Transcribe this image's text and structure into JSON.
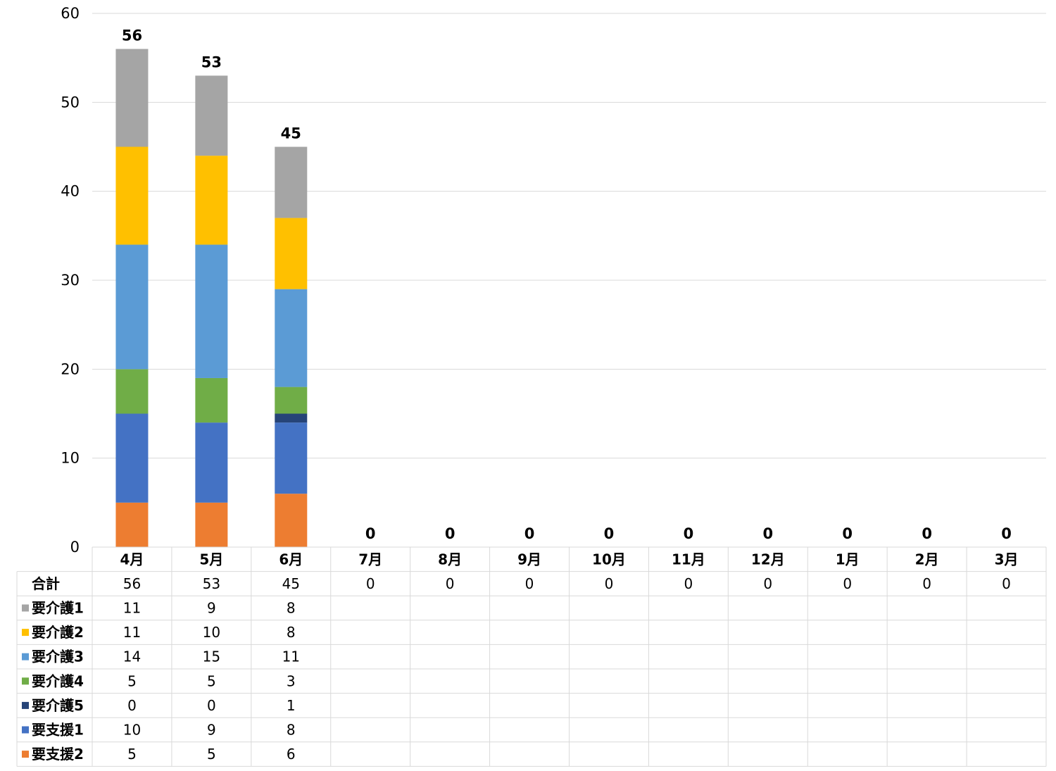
{
  "chart_data": {
    "type": "bar",
    "stacked": true,
    "title": "",
    "xlabel": "",
    "ylabel": "",
    "ylim": [
      0,
      60
    ],
    "yticks": [
      0,
      10,
      20,
      30,
      40,
      50,
      60
    ],
    "grid": true,
    "legend": "data-table",
    "categories": [
      "4月",
      "5月",
      "6月",
      "7月",
      "8月",
      "9月",
      "10月",
      "11月",
      "12月",
      "1月",
      "2月",
      "3月"
    ],
    "total": {
      "name": "合計",
      "values": [
        56,
        53,
        45,
        0,
        0,
        0,
        0,
        0,
        0,
        0,
        0,
        0
      ]
    },
    "series": [
      {
        "name": "要支援2",
        "color": "#ED7D31",
        "values": [
          5,
          5,
          6,
          null,
          null,
          null,
          null,
          null,
          null,
          null,
          null,
          null
        ]
      },
      {
        "name": "要支援1",
        "color": "#4472C4",
        "values": [
          10,
          9,
          8,
          null,
          null,
          null,
          null,
          null,
          null,
          null,
          null,
          null
        ]
      },
      {
        "name": "要介護5",
        "color": "#264478",
        "values": [
          0,
          0,
          1,
          null,
          null,
          null,
          null,
          null,
          null,
          null,
          null,
          null
        ]
      },
      {
        "name": "要介護4",
        "color": "#70AD47",
        "values": [
          5,
          5,
          3,
          null,
          null,
          null,
          null,
          null,
          null,
          null,
          null,
          null
        ]
      },
      {
        "name": "要介護3",
        "color": "#5B9BD5",
        "values": [
          14,
          15,
          11,
          null,
          null,
          null,
          null,
          null,
          null,
          null,
          null,
          null
        ]
      },
      {
        "name": "要介護2",
        "color": "#FFC000",
        "values": [
          11,
          10,
          8,
          null,
          null,
          null,
          null,
          null,
          null,
          null,
          null,
          null
        ]
      },
      {
        "name": "要介護1",
        "color": "#A5A5A5",
        "values": [
          11,
          9,
          8,
          null,
          null,
          null,
          null,
          null,
          null,
          null,
          null,
          null
        ]
      }
    ],
    "table_row_order": [
      "要介護1",
      "要介護2",
      "要介護3",
      "要介護4",
      "要介護5",
      "要支援1",
      "要支援2"
    ]
  }
}
